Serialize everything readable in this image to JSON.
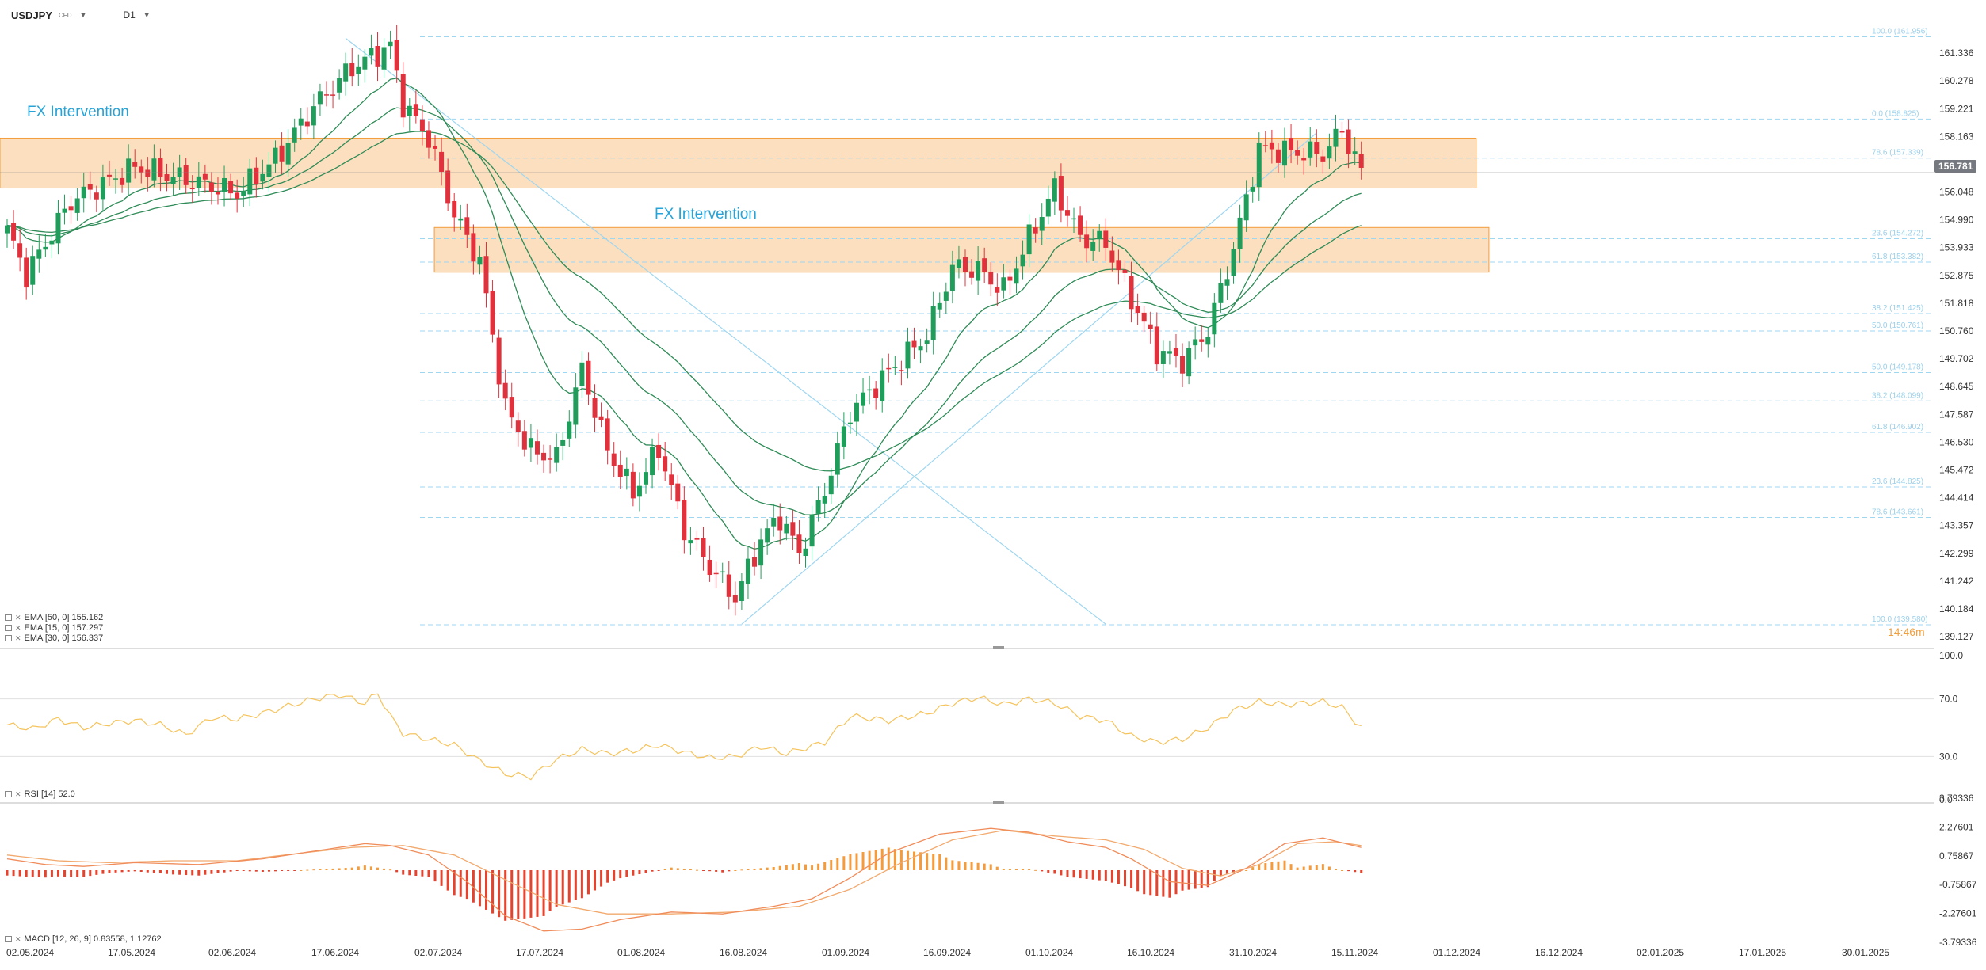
{
  "header": {
    "symbol": "USDJPY",
    "symbol_type": "CFD",
    "timeframe": "D1"
  },
  "annotations": {
    "fx_intervention_1": "FX Intervention",
    "fx_intervention_2": "FX Intervention"
  },
  "current_price": "156.781",
  "fib_corner_label": "14:46m",
  "legend": {
    "ema50": "EMA [50, 0] 155.162",
    "ema15": "EMA [15, 0] 157.297",
    "ema30": "EMA [30, 0] 156.337",
    "rsi": "RSI [14] 52.0",
    "macd": "MACD [12, 26, 9] 0.83558, 1.12762"
  },
  "colors": {
    "up": "#1e9e5a",
    "down": "#e0313c",
    "ema": "#2e8b57",
    "rsi": "#f5c35b",
    "macd_line": "#f08c5a",
    "signal_line": "#f2a96d",
    "zone_fill": "#fbd4a8",
    "zone_border": "#f39c3c",
    "fib": "#9fd6f0",
    "trend": "#9fd6f0"
  },
  "chart_data": [
    {
      "type": "candlestick",
      "name": "USDJPY",
      "yticks": [
        "161.336",
        "160.278",
        "159.221",
        "158.163",
        "157.106",
        "156.048",
        "154.990",
        "153.933",
        "152.875",
        "151.818",
        "150.760",
        "149.702",
        "148.645",
        "147.587",
        "146.530",
        "145.472",
        "144.414",
        "143.357",
        "142.299",
        "141.242",
        "140.184",
        "139.127"
      ],
      "ylim": [
        139.127,
        162.394
      ],
      "xticks": [
        "02.05.2024",
        "17.05.2024",
        "02.06.2024",
        "17.06.2024",
        "02.07.2024",
        "17.07.2024",
        "01.08.2024",
        "16.08.2024",
        "01.09.2024",
        "16.09.2024",
        "01.10.2024",
        "16.10.2024",
        "31.10.2024",
        "15.11.2024",
        "01.12.2024",
        "16.12.2024",
        "02.01.2025",
        "17.01.2025",
        "30.01.2025"
      ],
      "close_anchors": [
        [
          0,
          154.6
        ],
        [
          3,
          152.9
        ],
        [
          10,
          155.7
        ],
        [
          20,
          157.0
        ],
        [
          30,
          156.4
        ],
        [
          36,
          156.0
        ],
        [
          42,
          157.3
        ],
        [
          48,
          159.3
        ],
        [
          54,
          160.8
        ],
        [
          57,
          161.2
        ],
        [
          60,
          161.6
        ],
        [
          62,
          159.4
        ],
        [
          66,
          158.1
        ],
        [
          70,
          155.2
        ],
        [
          74,
          153.4
        ],
        [
          78,
          147.8
        ],
        [
          82,
          146.2
        ],
        [
          86,
          145.9
        ],
        [
          90,
          149.3
        ],
        [
          94,
          146.2
        ],
        [
          98,
          144.6
        ],
        [
          102,
          146.3
        ],
        [
          106,
          143.2
        ],
        [
          110,
          141.8
        ],
        [
          114,
          140.6
        ],
        [
          118,
          142.8
        ],
        [
          121,
          143.7
        ],
        [
          124,
          142.3
        ],
        [
          128,
          144.7
        ],
        [
          132,
          147.7
        ],
        [
          138,
          149.2
        ],
        [
          144,
          150.6
        ],
        [
          148,
          153.2
        ],
        [
          152,
          153.1
        ],
        [
          156,
          152.3
        ],
        [
          160,
          154.3
        ],
        [
          164,
          156.2
        ],
        [
          168,
          154.3
        ],
        [
          172,
          154.1
        ],
        [
          176,
          152.0
        ],
        [
          180,
          150.0
        ],
        [
          184,
          149.6
        ],
        [
          188,
          150.8
        ],
        [
          192,
          153.9
        ],
        [
          196,
          157.7
        ],
        [
          200,
          157.6
        ],
        [
          206,
          157.5
        ],
        [
          209,
          158.4
        ],
        [
          212,
          156.8
        ]
      ],
      "ema15_last": 157.297,
      "ema30_last": 156.337,
      "ema50_last": 155.162,
      "zones": [
        {
          "label": "FX Intervention",
          "top": 158.1,
          "bottom": 156.2,
          "x_from": 0,
          "x_to": 230
        },
        {
          "label": "FX Intervention",
          "top": 154.7,
          "bottom": 153.0,
          "x_from": 68,
          "x_to": 232
        }
      ],
      "fib_upper": [
        {
          "label": "100.0 (161.956)",
          "value": 161.956
        },
        {
          "label": "0.0 (158.825)",
          "value": 158.825
        },
        {
          "label": "78.6 (157.339)",
          "value": 157.339
        },
        {
          "label": "23.6 (154.272)",
          "value": 154.272
        },
        {
          "label": "61.8 (153.382)",
          "value": 153.382
        },
        {
          "label": "38.2 (151.425)",
          "value": 151.425
        },
        {
          "label": "50.0 (150.761)",
          "value": 150.761
        },
        {
          "label": "50.0 (149.178)",
          "value": 149.178
        },
        {
          "label": "38.2 (148.099)",
          "value": 148.099
        },
        {
          "label": "61.8 (146.902)",
          "value": 146.902
        },
        {
          "label": "23.6 (144.825)",
          "value": 144.825
        },
        {
          "label": "78.6 (143.661)",
          "value": 143.661
        },
        {
          "label": "100.0 (139.580)",
          "value": 139.58
        }
      ],
      "trendlines": [
        {
          "from": [
            53,
            161.9
          ],
          "to": [
            172,
            139.6
          ]
        },
        {
          "from": [
            115,
            139.6
          ],
          "to": [
            205,
            158.3
          ]
        }
      ]
    },
    {
      "type": "line",
      "name": "RSI [14]",
      "yticks": [
        "100.0",
        "70.0",
        "30.0",
        "0.0"
      ],
      "ylim": [
        0,
        100
      ],
      "level_lines": [
        70,
        30
      ],
      "anchors": [
        [
          0,
          52
        ],
        [
          4,
          49
        ],
        [
          8,
          56
        ],
        [
          12,
          50
        ],
        [
          16,
          53
        ],
        [
          20,
          55
        ],
        [
          24,
          52
        ],
        [
          28,
          45
        ],
        [
          32,
          57
        ],
        [
          36,
          56
        ],
        [
          40,
          60
        ],
        [
          44,
          65
        ],
        [
          48,
          70
        ],
        [
          52,
          73
        ],
        [
          56,
          67
        ],
        [
          58,
          74
        ],
        [
          60,
          58
        ],
        [
          62,
          46
        ],
        [
          66,
          42
        ],
        [
          70,
          38
        ],
        [
          74,
          27
        ],
        [
          78,
          18
        ],
        [
          82,
          16
        ],
        [
          86,
          28
        ],
        [
          90,
          35
        ],
        [
          94,
          32
        ],
        [
          98,
          34
        ],
        [
          102,
          38
        ],
        [
          106,
          33
        ],
        [
          110,
          29
        ],
        [
          114,
          30
        ],
        [
          118,
          37
        ],
        [
          122,
          32
        ],
        [
          128,
          40
        ],
        [
          132,
          58
        ],
        [
          138,
          55
        ],
        [
          144,
          60
        ],
        [
          148,
          67
        ],
        [
          152,
          71
        ],
        [
          156,
          66
        ],
        [
          160,
          70
        ],
        [
          164,
          67
        ],
        [
          168,
          58
        ],
        [
          172,
          55
        ],
        [
          176,
          44
        ],
        [
          180,
          40
        ],
        [
          184,
          42
        ],
        [
          188,
          50
        ],
        [
          192,
          62
        ],
        [
          196,
          68
        ],
        [
          200,
          66
        ],
        [
          206,
          68
        ],
        [
          209,
          64
        ],
        [
          212,
          50
        ]
      ]
    },
    {
      "type": "bar",
      "name": "MACD [12, 26, 9]",
      "yticks": [
        "3.79336",
        "2.27601",
        "0.75867",
        "-0.75867",
        "-2.27601",
        "-3.79336"
      ],
      "ylim": [
        -3.79336,
        3.79336
      ],
      "macd_anchors": [
        [
          0,
          0.6
        ],
        [
          6,
          0.3
        ],
        [
          12,
          0.2
        ],
        [
          20,
          0.4
        ],
        [
          30,
          0.3
        ],
        [
          40,
          0.6
        ],
        [
          48,
          1.0
        ],
        [
          56,
          1.4
        ],
        [
          60,
          1.3
        ],
        [
          66,
          0.8
        ],
        [
          72,
          -0.6
        ],
        [
          78,
          -2.4
        ],
        [
          84,
          -3.2
        ],
        [
          90,
          -3.1
        ],
        [
          96,
          -2.6
        ],
        [
          104,
          -2.2
        ],
        [
          112,
          -2.3
        ],
        [
          120,
          -1.9
        ],
        [
          126,
          -1.5
        ],
        [
          132,
          -0.4
        ],
        [
          138,
          0.9
        ],
        [
          146,
          1.9
        ],
        [
          154,
          2.2
        ],
        [
          160,
          2.0
        ],
        [
          166,
          1.5
        ],
        [
          172,
          1.2
        ],
        [
          176,
          0.6
        ],
        [
          182,
          -0.6
        ],
        [
          188,
          -0.8
        ],
        [
          194,
          0.1
        ],
        [
          200,
          1.4
        ],
        [
          206,
          1.7
        ],
        [
          212,
          1.2
        ]
      ],
      "signal_anchors": [
        [
          0,
          0.8
        ],
        [
          8,
          0.5
        ],
        [
          16,
          0.4
        ],
        [
          26,
          0.5
        ],
        [
          36,
          0.5
        ],
        [
          46,
          0.9
        ],
        [
          54,
          1.2
        ],
        [
          62,
          1.3
        ],
        [
          70,
          0.8
        ],
        [
          78,
          -0.5
        ],
        [
          86,
          -1.8
        ],
        [
          94,
          -2.3
        ],
        [
          104,
          -2.3
        ],
        [
          114,
          -2.2
        ],
        [
          124,
          -1.9
        ],
        [
          132,
          -1.0
        ],
        [
          140,
          0.4
        ],
        [
          148,
          1.6
        ],
        [
          156,
          2.1
        ],
        [
          164,
          1.8
        ],
        [
          172,
          1.6
        ],
        [
          178,
          1.1
        ],
        [
          184,
          0.1
        ],
        [
          190,
          -0.3
        ],
        [
          196,
          0.3
        ],
        [
          202,
          1.4
        ],
        [
          208,
          1.5
        ],
        [
          212,
          1.3
        ]
      ]
    }
  ]
}
